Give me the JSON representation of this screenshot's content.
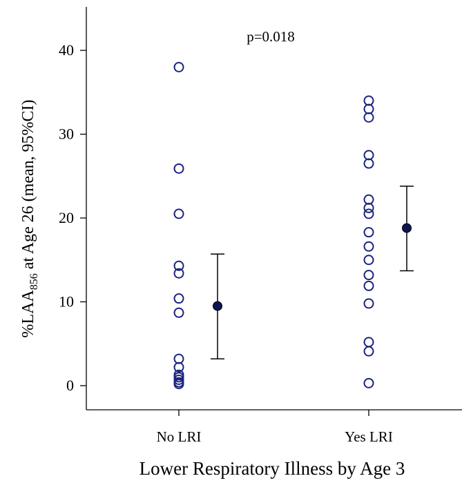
{
  "chart_data": {
    "type": "scatter",
    "xlabel": "Lower Respiratory Illness by Age 3",
    "ylabel": {
      "prefix": "%LAA",
      "subscript": "856",
      "suffix": " at Age 26 (mean, 95%CI)"
    },
    "ylim": [
      -3,
      44
    ],
    "yticks": [
      0,
      10,
      20,
      30,
      40
    ],
    "ytick_labels": [
      "0",
      "10",
      "20",
      "30",
      "40"
    ],
    "categories": [
      "No LRI",
      "Yes LRI"
    ],
    "annotation": "p=0.018",
    "grid": false,
    "colors": {
      "points": "#1a237e",
      "mean": "#0d1452",
      "axis": "#000000",
      "errorbar": "#000000"
    },
    "series": [
      {
        "category": "No LRI",
        "points": [
          38.0,
          25.9,
          20.5,
          14.3,
          13.4,
          10.4,
          8.7,
          3.2,
          2.2,
          1.3,
          1.0,
          0.7,
          0.4,
          0.2
        ],
        "mean": 9.5,
        "ci": [
          3.2,
          15.7
        ]
      },
      {
        "category": "Yes LRI",
        "points": [
          34.0,
          33.0,
          32.0,
          27.5,
          26.5,
          22.2,
          21.2,
          20.5,
          18.3,
          16.6,
          15.0,
          13.2,
          11.9,
          9.8,
          5.2,
          4.1,
          0.3
        ],
        "mean": 18.8,
        "ci": [
          13.7,
          23.8
        ]
      }
    ]
  }
}
